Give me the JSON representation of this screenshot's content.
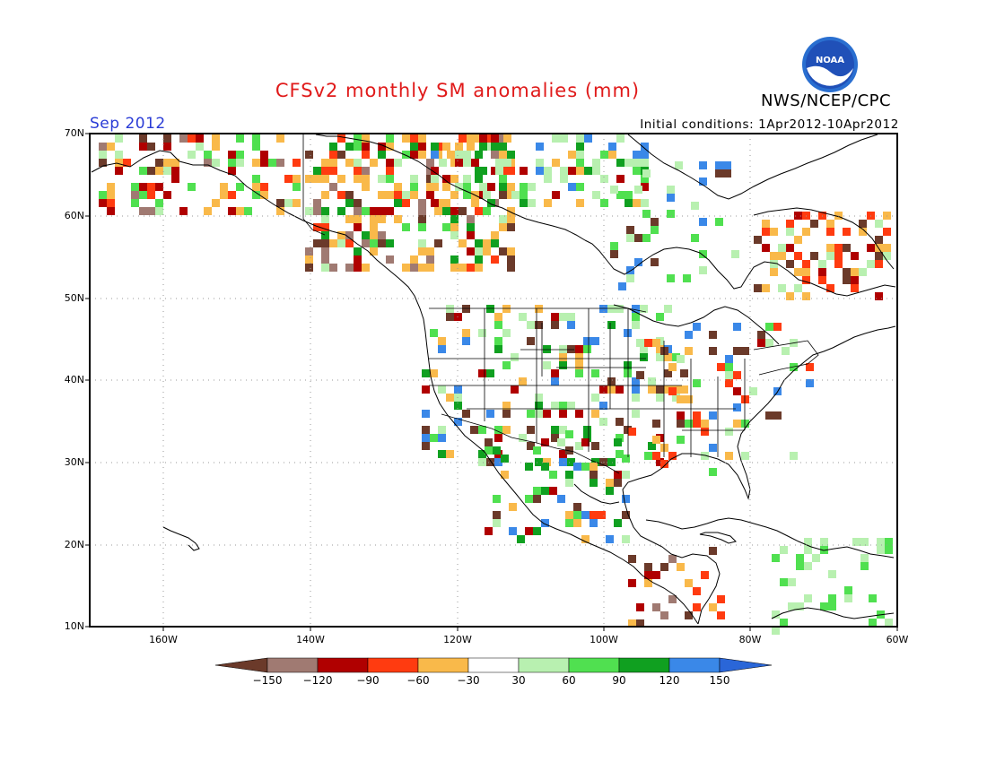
{
  "header": {
    "title": "CFSv2 monthly SM anomalies (mm)",
    "agency": "NWS/NCEP/CPC",
    "logo_text": "NOAA",
    "month": "Sep 2012",
    "initial_conditions": "Initial conditions: 1Apr2012-10Apr2012"
  },
  "map": {
    "lat_labels": [
      "70N",
      "60N",
      "50N",
      "40N",
      "30N",
      "20N",
      "10N"
    ],
    "lon_labels": [
      "160W",
      "140W",
      "120W",
      "100W",
      "80W",
      "60W"
    ],
    "grid": true
  },
  "colorbar": {
    "labels": [
      "-150",
      "-120",
      "-90",
      "-60",
      "-30",
      "30",
      "60",
      "90",
      "120",
      "150"
    ],
    "colors": [
      "#6b3a2a",
      "#a07a72",
      "#b00000",
      "#ff3b10",
      "#f9b94a",
      "#ffffff",
      "#b8f0b0",
      "#50e050",
      "#10a020",
      "#3a88e8",
      "#2a66d8"
    ]
  }
}
